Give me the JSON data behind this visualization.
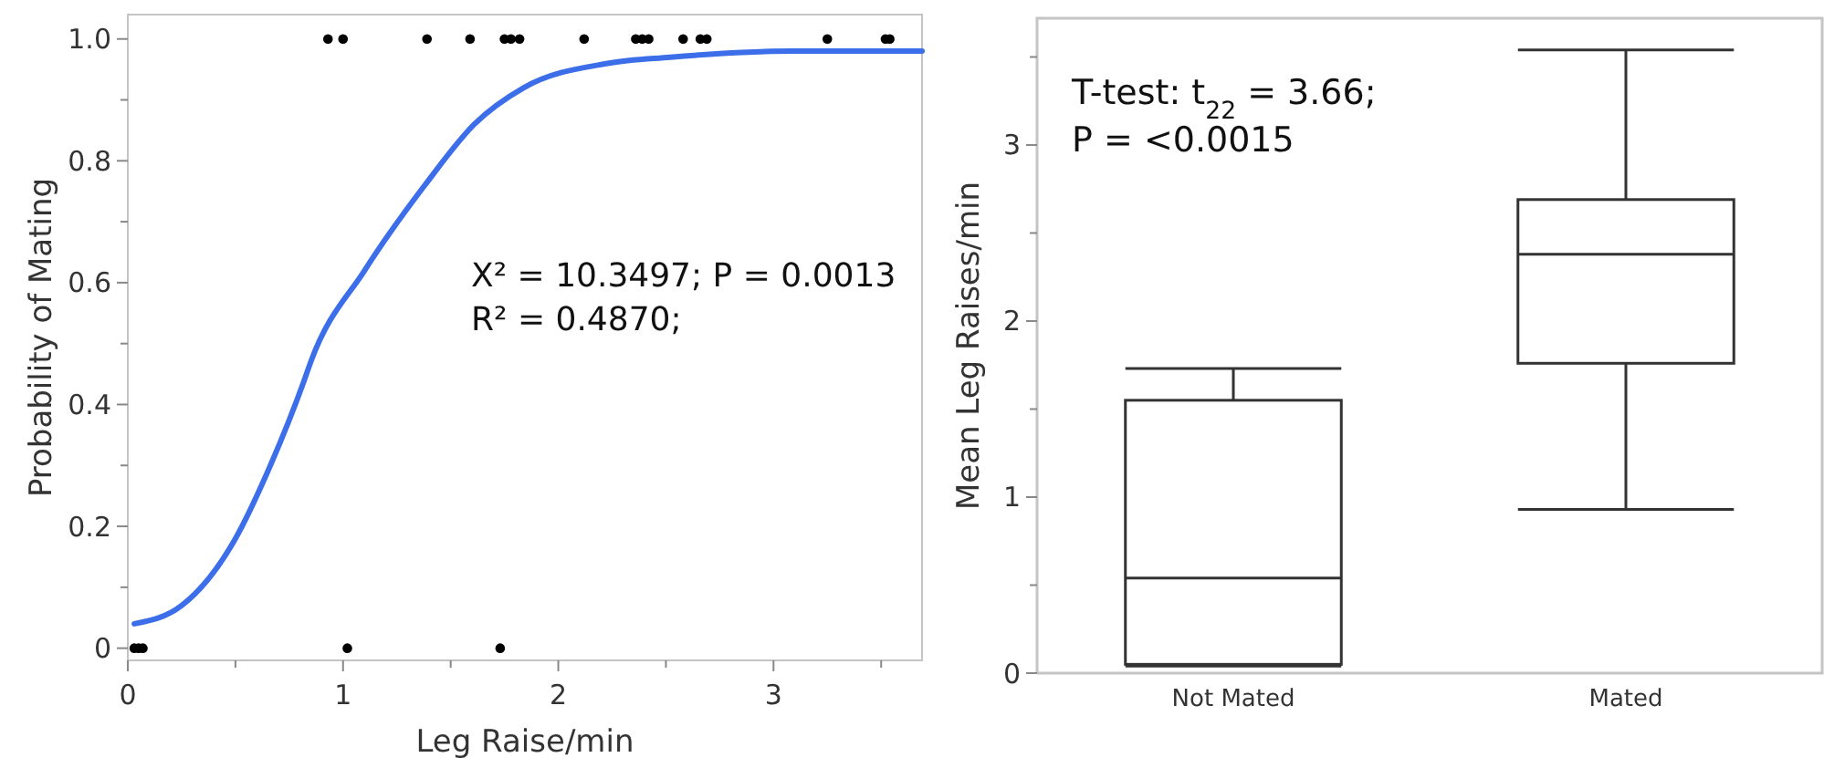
{
  "chart_data": [
    {
      "type": "scatter",
      "xlabel": "Leg Raise/min",
      "ylabel": "Probability of Mating",
      "xlim": [
        0,
        3.69
      ],
      "ylim": [
        -0.02,
        1.04
      ],
      "xticks": [
        0,
        {
          "value": 0.5,
          "label": null
        },
        1,
        {
          "value": 1.5,
          "label": null
        },
        2,
        {
          "value": 2.5,
          "label": null
        },
        3,
        {
          "value": 3.5,
          "label": null
        }
      ],
      "yticks": [
        0,
        {
          "value": 0.1,
          "label": null
        },
        0.2,
        {
          "value": 0.3,
          "label": null
        },
        0.4,
        {
          "value": 0.5,
          "label": null
        },
        0.6,
        {
          "value": 0.7,
          "label": null
        },
        0.8,
        {
          "value": 0.9,
          "label": null
        },
        {
          "value": 1,
          "label": "1.0"
        }
      ],
      "grid": false,
      "series": [
        {
          "type": "scatter",
          "marker": "circle",
          "color": "#000000",
          "x": [
            0.93,
            1.0,
            1.39,
            1.59,
            1.75,
            1.78,
            1.82,
            2.12,
            2.36,
            2.39,
            2.42,
            2.58,
            2.66,
            2.69,
            3.25,
            3.52,
            3.54,
            0.03,
            0.05,
            0.07,
            1.02,
            1.73
          ],
          "values": [
            1,
            1,
            1,
            1,
            1,
            1,
            1,
            1,
            1,
            1,
            1,
            1,
            1,
            1,
            1,
            1,
            1,
            0,
            0,
            0,
            0,
            0
          ]
        },
        {
          "type": "line",
          "marker": "none",
          "color": "#3b6ee8",
          "line_style": "solid",
          "x": [
            0.03,
            0.25,
            0.5,
            0.65,
            0.82,
            0.85,
            1.1,
            1.38,
            1.61,
            1.84,
            2.23,
            2.52,
            3.08,
            3.69
          ],
          "values": [
            0.04,
            0.07,
            0.18,
            0.29,
            0.44,
            0.47,
            0.62,
            0.76,
            0.86,
            0.92,
            0.96,
            0.97,
            0.98,
            0.98
          ]
        }
      ],
      "annotations": [
        "X² = 10.3497; P = 0.0013",
        "R² = 0.4870;"
      ]
    },
    {
      "type": "box",
      "ylabel": "Mean Leg Raises/min",
      "categories": [
        "Not Mated",
        "Mated"
      ],
      "ylim": [
        0,
        3.72
      ],
      "yticks": [
        0,
        {
          "value": 0.5,
          "label": null
        },
        1,
        {
          "value": 1.5,
          "label": null
        },
        2,
        {
          "value": 2.5,
          "label": null
        },
        3,
        {
          "value": 3.5,
          "label": null
        }
      ],
      "grid": false,
      "boxes": [
        {
          "low": 0.04,
          "q1": 0.05,
          "median": 0.54,
          "q3": 1.55,
          "high": 1.73
        },
        {
          "low": 0.93,
          "q1": 1.76,
          "median": 2.38,
          "q3": 2.69,
          "high": 3.54
        }
      ],
      "annotations": [
        "T-test: t$_{22}$ = 3.66;",
        "P = <0.0015"
      ]
    }
  ]
}
